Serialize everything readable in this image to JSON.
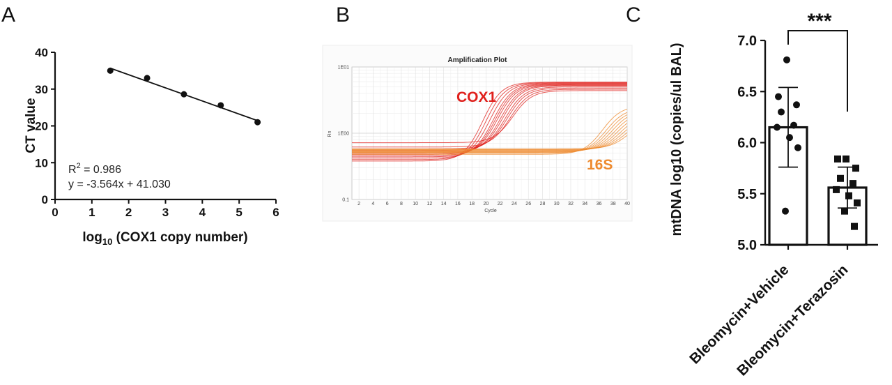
{
  "panels": {
    "a": {
      "letter": "A"
    },
    "b": {
      "letter": "B"
    },
    "c": {
      "letter": "C"
    }
  },
  "chart_data": [
    {
      "type": "scatter",
      "panel": "A",
      "xlabel_prefix": "log",
      "xlabel_sub": "10",
      "xlabel_rest": " (COX1 copy number)",
      "ylabel": "CT value",
      "xlim": [
        0,
        6
      ],
      "ylim": [
        0,
        40
      ],
      "xticks": [
        "0",
        "1",
        "2",
        "3",
        "4",
        "5",
        "6"
      ],
      "yticks": [
        "0",
        "10",
        "20",
        "30",
        "40"
      ],
      "x": [
        1.5,
        2.5,
        3.5,
        4.5,
        5.5
      ],
      "y": [
        35.0,
        33.0,
        28.6,
        25.6,
        21.0
      ],
      "fit": {
        "slope": -3.564,
        "intercept": 41.03,
        "x_range": [
          1.5,
          5.5
        ]
      },
      "r2_prefix": "R",
      "r2_sup": "2",
      "r2_value": " = 0.986",
      "equation": "y = -3.564x + 41.030",
      "marker_color": "#111111"
    },
    {
      "type": "line",
      "panel": "B",
      "title": "Amplification Plot",
      "xlabel": "Cycle",
      "ylabel": "Rn",
      "yscale": "log",
      "ylim": [
        0.1,
        10
      ],
      "yticks": [
        "1E01",
        "1E00",
        "0.1"
      ],
      "xlim": [
        1,
        40
      ],
      "xticks": [
        "2",
        "4",
        "6",
        "8",
        "10",
        "12",
        "14",
        "16",
        "18",
        "20",
        "22",
        "24",
        "26",
        "28",
        "30",
        "32",
        "34",
        "36",
        "38",
        "40"
      ],
      "annotations": [
        {
          "text": "COX1",
          "color": "#e0201c"
        },
        {
          "text": "16S",
          "color": "#ee8a2e"
        }
      ],
      "series": [
        {
          "group": "COX1",
          "color": "#e0201c",
          "baselines": [
            0.38,
            0.4,
            0.42,
            0.44,
            0.46,
            0.48,
            0.5,
            0.52,
            0.55,
            0.58,
            0.62,
            0.72
          ],
          "midpoints": [
            19.5,
            20.0,
            20.5,
            21.0,
            21.3,
            21.6,
            22.0,
            22.3,
            22.7,
            23.0,
            23.4,
            23.8
          ],
          "plateaus": [
            5.9,
            5.8,
            5.7,
            5.6,
            5.5,
            5.4,
            5.3,
            5.2,
            5.0,
            4.8,
            4.6,
            4.4
          ]
        },
        {
          "group": "16S",
          "color": "#ee8a2e",
          "baselines": [
            0.48,
            0.5,
            0.51,
            0.52,
            0.53,
            0.54,
            0.55,
            0.56,
            0.57,
            0.58
          ],
          "midpoints": [
            36.5,
            37.0,
            37.4,
            37.8,
            38.2,
            38.6,
            39.0,
            39.4,
            39.8,
            40.2
          ],
          "plateaus": [
            2.6,
            2.4,
            2.3,
            2.2,
            2.1,
            2.0,
            1.9,
            1.8,
            1.7,
            1.6
          ]
        }
      ]
    },
    {
      "type": "bar",
      "panel": "C",
      "ylabel": "mtDNA log10 (copies/ul BAL)",
      "ylim": [
        5.0,
        7.0
      ],
      "yticks": [
        "5.0",
        "5.5",
        "6.0",
        "6.5",
        "7.0"
      ],
      "categories": [
        "Bleomycin+Vehicle",
        "Bleomycin+Terazosin"
      ],
      "values": [
        6.15,
        5.56
      ],
      "error_sd": [
        0.39,
        0.2
      ],
      "points": [
        [
          6.81,
          6.45,
          6.37,
          6.3,
          6.17,
          6.15,
          6.05,
          5.95,
          5.33
        ],
        [
          5.84,
          5.84,
          5.75,
          5.65,
          5.6,
          5.54,
          5.48,
          5.41,
          5.33,
          5.18
        ]
      ],
      "markers": [
        "circle",
        "square"
      ],
      "significance": "***"
    }
  ]
}
